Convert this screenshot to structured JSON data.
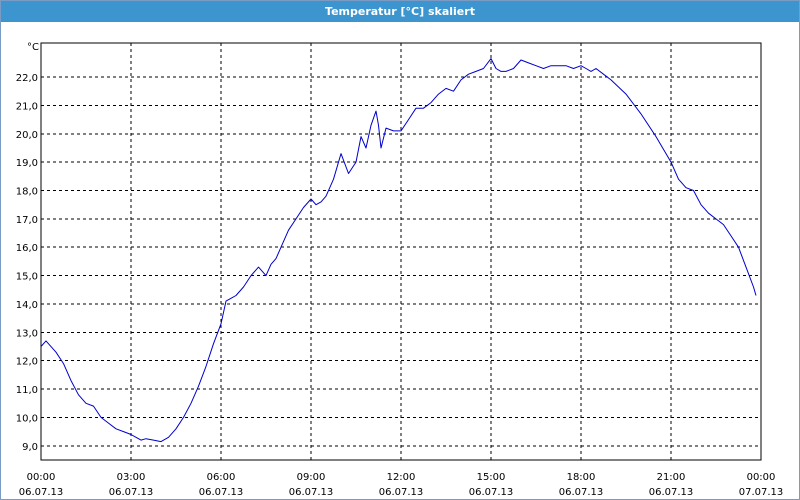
{
  "window": {
    "title": "Temperatur [°C] skaliert"
  },
  "chart_data": {
    "type": "line",
    "title": "Temperatur [°C] skaliert",
    "ylabel": "°C",
    "xlabel": "",
    "ylim": [
      8.5,
      23.2
    ],
    "xlim": [
      0,
      24
    ],
    "grid": true,
    "line_color": "#0000cc",
    "y_ticks": [
      9.0,
      10.0,
      11.0,
      12.0,
      13.0,
      14.0,
      15.0,
      16.0,
      17.0,
      18.0,
      19.0,
      20.0,
      21.0,
      22.0
    ],
    "y_tick_labels": [
      "9,0",
      "10,0",
      "11,0",
      "12,0",
      "13,0",
      "14,0",
      "15,0",
      "16,0",
      "17,0",
      "18,0",
      "19,0",
      "20,0",
      "21,0",
      "22,0"
    ],
    "x_ticks": [
      {
        "time": "00:00",
        "date": "06.07.13"
      },
      {
        "time": "03:00",
        "date": "06.07.13"
      },
      {
        "time": "06:00",
        "date": "06.07.13"
      },
      {
        "time": "09:00",
        "date": "06.07.13"
      },
      {
        "time": "12:00",
        "date": "06.07.13"
      },
      {
        "time": "15:00",
        "date": "06.07.13"
      },
      {
        "time": "18:00",
        "date": "06.07.13"
      },
      {
        "time": "21:00",
        "date": "06.07.13"
      },
      {
        "time": "00:00",
        "date": "07.07.13"
      }
    ],
    "series": [
      {
        "x": [
          "06.07.13 00:00",
          "06.07.13 00:10",
          "06.07.13 00:30",
          "06.07.13 00:45",
          "06.07.13 01:00",
          "06.07.13 01:15",
          "06.07.13 01:30",
          "06.07.13 01:45",
          "06.07.13 02:00",
          "06.07.13 02:15",
          "06.07.13 02:30",
          "06.07.13 02:45",
          "06.07.13 03:00",
          "06.07.13 03:10",
          "06.07.13 03:20",
          "06.07.13 03:30",
          "06.07.13 03:45",
          "06.07.13 04:00",
          "06.07.13 04:15",
          "06.07.13 04:30",
          "06.07.13 04:45",
          "06.07.13 05:00",
          "06.07.13 05:15",
          "06.07.13 05:30",
          "06.07.13 05:45",
          "06.07.13 06:00",
          "06.07.13 06:10",
          "06.07.13 06:20",
          "06.07.13 06:30",
          "06.07.13 06:45",
          "06.07.13 07:00",
          "06.07.13 07:15",
          "06.07.13 07:30",
          "06.07.13 07:40",
          "06.07.13 07:50",
          "06.07.13 08:00",
          "06.07.13 08:15",
          "06.07.13 08:30",
          "06.07.13 08:45",
          "06.07.13 09:00",
          "06.07.13 09:10",
          "06.07.13 09:20",
          "06.07.13 09:30",
          "06.07.13 09:45",
          "06.07.13 10:00",
          "06.07.13 10:15",
          "06.07.13 10:30",
          "06.07.13 10:40",
          "06.07.13 10:50",
          "06.07.13 11:00",
          "06.07.13 11:10",
          "06.07.13 11:15",
          "06.07.13 11:20",
          "06.07.13 11:30",
          "06.07.13 11:45",
          "06.07.13 12:00",
          "06.07.13 12:15",
          "06.07.13 12:30",
          "06.07.13 12:45",
          "06.07.13 13:00",
          "06.07.13 13:15",
          "06.07.13 13:30",
          "06.07.13 13:45",
          "06.07.13 14:00",
          "06.07.13 14:15",
          "06.07.13 14:30",
          "06.07.13 14:45",
          "06.07.13 15:00",
          "06.07.13 15:10",
          "06.07.13 15:20",
          "06.07.13 15:30",
          "06.07.13 15:45",
          "06.07.13 16:00",
          "06.07.13 16:15",
          "06.07.13 16:30",
          "06.07.13 16:45",
          "06.07.13 17:00",
          "06.07.13 17:15",
          "06.07.13 17:30",
          "06.07.13 17:45",
          "06.07.13 18:00",
          "06.07.13 18:10",
          "06.07.13 18:20",
          "06.07.13 18:30",
          "06.07.13 18:45",
          "06.07.13 19:00",
          "06.07.13 19:30",
          "06.07.13 20:00",
          "06.07.13 20:30",
          "06.07.13 21:00",
          "06.07.13 21:15",
          "06.07.13 21:30",
          "06.07.13 21:45",
          "06.07.13 22:00",
          "06.07.13 22:15",
          "06.07.13 22:30",
          "06.07.13 22:45",
          "06.07.13 23:00",
          "06.07.13 23:15",
          "06.07.13 23:30",
          "06.07.13 23:45",
          "06.07.13 23:50"
        ],
        "y": [
          12.5,
          12.7,
          12.3,
          11.9,
          11.3,
          10.8,
          10.5,
          10.4,
          10.0,
          9.8,
          9.6,
          9.5,
          9.4,
          9.3,
          9.2,
          9.25,
          9.2,
          9.15,
          9.3,
          9.6,
          10.0,
          10.5,
          11.1,
          11.8,
          12.6,
          13.3,
          14.1,
          14.2,
          14.3,
          14.6,
          15.0,
          15.3,
          15.0,
          15.4,
          15.6,
          16.0,
          16.6,
          17.0,
          17.4,
          17.7,
          17.5,
          17.6,
          17.8,
          18.4,
          19.3,
          18.6,
          19.0,
          19.9,
          19.5,
          20.3,
          20.8,
          20.3,
          19.5,
          20.2,
          20.1,
          20.1,
          20.5,
          20.9,
          20.9,
          21.1,
          21.4,
          21.6,
          21.5,
          21.9,
          22.1,
          22.2,
          22.3,
          22.65,
          22.3,
          22.2,
          22.2,
          22.3,
          22.6,
          22.5,
          22.4,
          22.3,
          22.4,
          22.4,
          22.4,
          22.3,
          22.4,
          22.3,
          22.2,
          22.3,
          22.1,
          21.9,
          21.4,
          20.7,
          19.9,
          19.0,
          18.4,
          18.1,
          18.0,
          17.5,
          17.2,
          17.0,
          16.8,
          16.4,
          16.0,
          15.3,
          14.6,
          14.3
        ]
      }
    ]
  }
}
